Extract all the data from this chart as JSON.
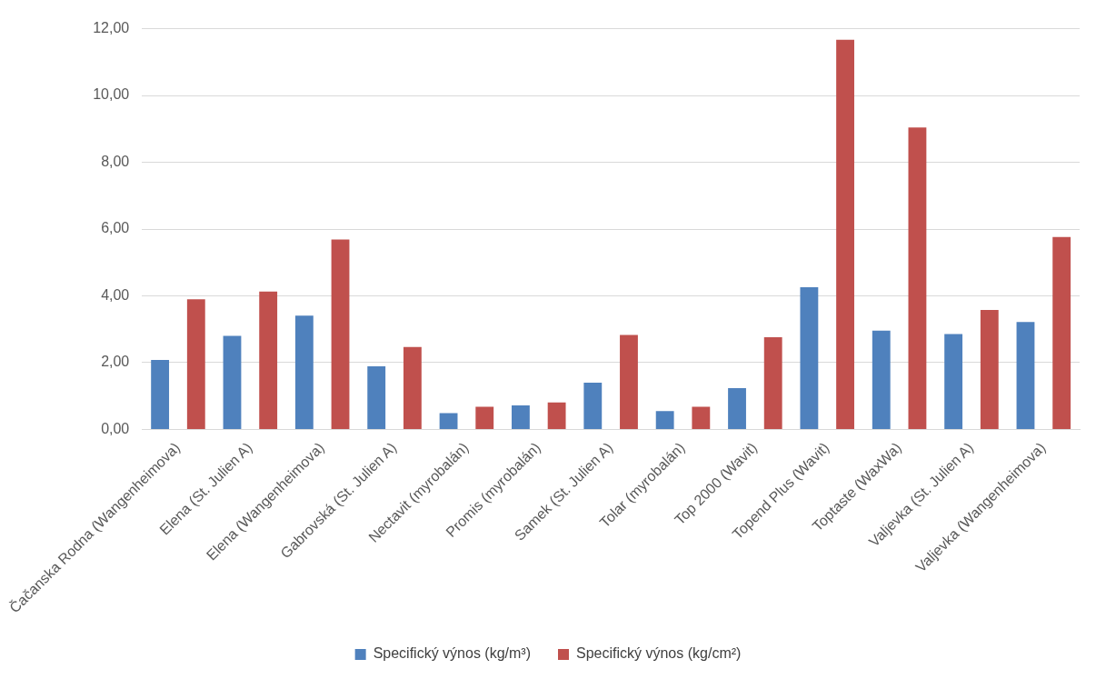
{
  "chart_data": {
    "type": "bar",
    "categories": [
      "Čačanska Rodna (Wangenheimova)",
      "Elena (St. Julien A)",
      "Elena (Wangenheimova)",
      "Gabrovská (St. Julien A)",
      "Nectavit (myrobalán)",
      "Promis (myrobalán)",
      "Samek (St. Julien A)",
      "Tolar (myrobalán)",
      "Top 2000 (Wavit)",
      "Topend Plus (Wavit)",
      "Toptaste (WaxWa)",
      "Valjevka (St. Julien A)",
      "Valjevka (Wangenheimova)"
    ],
    "series": [
      {
        "name": "Specifický výnos (kg/m³)",
        "color": "#4f81bd",
        "values": [
          2.08,
          2.8,
          3.41,
          1.89,
          0.49,
          0.72,
          1.4,
          0.55,
          1.24,
          4.26,
          2.96,
          2.86,
          3.22
        ]
      },
      {
        "name": "Specifický výnos (kg/cm²)",
        "color": "#c0504d",
        "values": [
          3.9,
          4.13,
          5.69,
          2.47,
          0.68,
          0.81,
          2.83,
          0.68,
          2.76,
          11.67,
          9.04,
          3.58,
          5.76
        ]
      }
    ],
    "ylim": [
      0,
      12
    ],
    "yticks": [
      {
        "value": 0,
        "label": "0,00"
      },
      {
        "value": 2,
        "label": "2,00"
      },
      {
        "value": 4,
        "label": "4,00"
      },
      {
        "value": 6,
        "label": "6,00"
      },
      {
        "value": 8,
        "label": "8,00"
      },
      {
        "value": 10,
        "label": "10,00"
      },
      {
        "value": 12,
        "label": "12,00"
      }
    ],
    "grid": "y",
    "legend": "bottom"
  }
}
